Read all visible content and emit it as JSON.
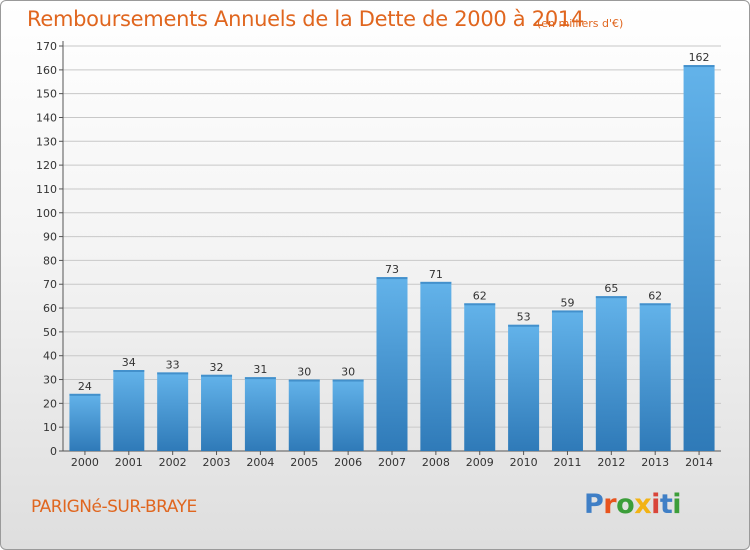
{
  "title": "Remboursements Annuels de la Dette de 2000 à 2014",
  "subtitle": "(en milliers d'€)",
  "commune": "PARIGNé-SUR-BRAYE",
  "logo": {
    "text": "Proxiti",
    "letter_colors": [
      "#3f7fc6",
      "#e8541e",
      "#3c9e3a",
      "#f2b314",
      "#d9453a",
      "#3f7fc6",
      "#3c9e3a"
    ]
  },
  "colors": {
    "title": "#e0661f",
    "bar_light": "#63b3ea",
    "bar_dark": "#2f7ab8",
    "grid": "#c8c8c8"
  },
  "chart_data": {
    "type": "bar",
    "title": "Remboursements Annuels de la Dette de 2000 à 2014",
    "subtitle": "(en milliers d'€)",
    "categories": [
      "2000",
      "2001",
      "2002",
      "2003",
      "2004",
      "2005",
      "2006",
      "2007",
      "2008",
      "2009",
      "2010",
      "2011",
      "2012",
      "2013",
      "2014"
    ],
    "values": [
      24,
      34,
      33,
      32,
      31,
      30,
      30,
      73,
      71,
      62,
      53,
      59,
      65,
      62,
      162
    ],
    "data_labels": [
      "24",
      "34",
      "33",
      "32",
      "31",
      "30",
      "30",
      "73",
      "71",
      "62",
      "53",
      "59",
      "65",
      "62",
      "162"
    ],
    "y_ticks": [
      "0",
      "10",
      "20",
      "30",
      "40",
      "50",
      "60",
      "70",
      "80",
      "90",
      "100",
      "110",
      "120",
      "130",
      "140",
      "150",
      "160",
      "170"
    ],
    "ylim": [
      0,
      170
    ],
    "grid": true,
    "legend": "none"
  }
}
